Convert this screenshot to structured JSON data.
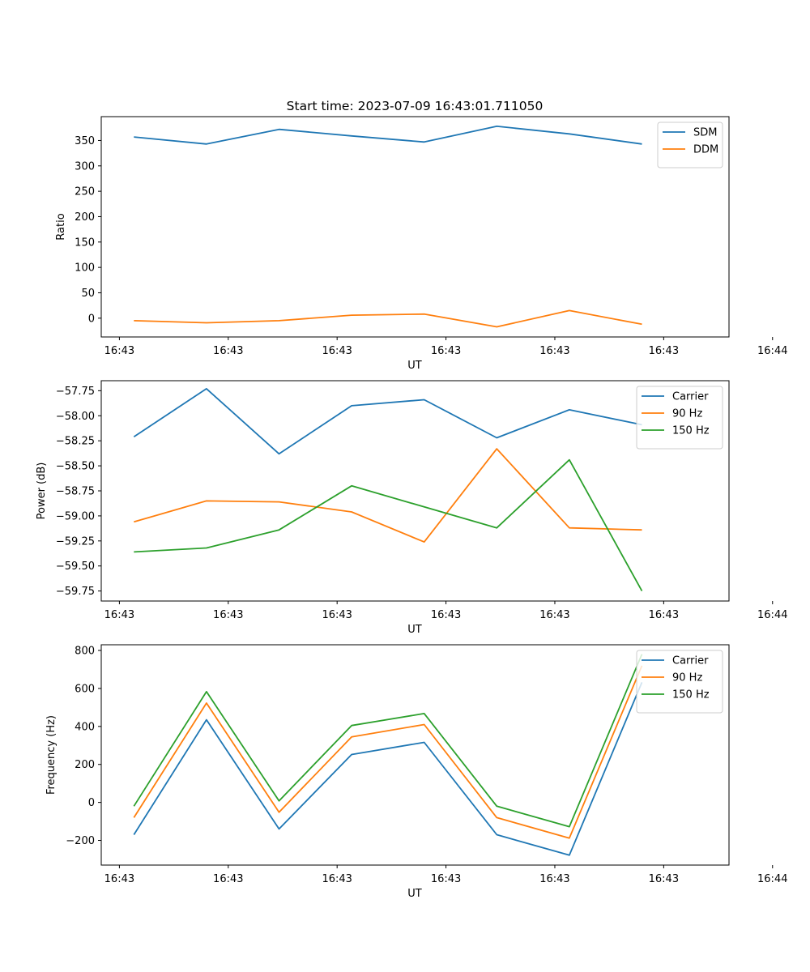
{
  "figure": {
    "title": "Start time: 2023-07-09 16:43:01.711050"
  },
  "chart_data": [
    {
      "type": "line",
      "title": "Start time: 2023-07-09 16:43:01.711050",
      "xlabel": "UT",
      "ylabel": "Ratio",
      "x": [
        1,
        2,
        3,
        4,
        5,
        6,
        7,
        8
      ],
      "xlim": [
        0.55,
        9.2
      ],
      "x_ticks": [
        0.8,
        2.3,
        3.8,
        5.3,
        6.8,
        8.3,
        9.8
      ],
      "x_tick_labels": [
        "16:43",
        "16:43",
        "16:43",
        "16:43",
        "16:43",
        "16:43",
        "16:44"
      ],
      "ylim": [
        -37,
        397
      ],
      "y_ticks": [
        0,
        50,
        100,
        150,
        200,
        250,
        300,
        350
      ],
      "y_tick_labels": [
        "0",
        "50",
        "100",
        "150",
        "200",
        "250",
        "300",
        "350"
      ],
      "legend_position": "top-right",
      "series": [
        {
          "name": "SDM",
          "color": "#1f77b4",
          "values": [
            357,
            343,
            372,
            359,
            347,
            378,
            363,
            343
          ]
        },
        {
          "name": "DDM",
          "color": "#ff7f0e",
          "values": [
            -5,
            -9,
            -5,
            6,
            8,
            -17,
            15,
            -12
          ]
        }
      ]
    },
    {
      "type": "line",
      "title": "",
      "xlabel": "UT",
      "ylabel": "Power (dB)",
      "x": [
        1,
        2,
        3,
        4,
        5,
        6,
        7,
        8
      ],
      "xlim": [
        0.55,
        9.2
      ],
      "x_ticks": [
        0.8,
        2.3,
        3.8,
        5.3,
        6.8,
        8.3,
        9.8
      ],
      "x_tick_labels": [
        "16:43",
        "16:43",
        "16:43",
        "16:43",
        "16:43",
        "16:43",
        "16:44"
      ],
      "ylim": [
        -59.85,
        -57.65
      ],
      "y_ticks": [
        -57.75,
        -58.0,
        -58.25,
        -58.5,
        -58.75,
        -59.0,
        -59.25,
        -59.5,
        -59.75
      ],
      "y_tick_labels": [
        "−57.75",
        "−58.00",
        "−58.25",
        "−58.50",
        "−58.75",
        "−59.00",
        "−59.25",
        "−59.50",
        "−59.75"
      ],
      "legend_position": "top-right",
      "series": [
        {
          "name": "Carrier",
          "color": "#1f77b4",
          "values": [
            -58.21,
            -57.73,
            -58.38,
            -57.9,
            -57.84,
            -58.22,
            -57.94,
            -58.09
          ]
        },
        {
          "name": "90 Hz",
          "color": "#ff7f0e",
          "values": [
            -59.06,
            -58.85,
            -58.86,
            -58.96,
            -59.26,
            -58.33,
            -59.12,
            -59.14
          ]
        },
        {
          "name": "150 Hz",
          "color": "#2ca02c",
          "values": [
            -59.36,
            -59.32,
            -59.14,
            -58.7,
            -58.91,
            -59.12,
            -58.44,
            -59.75
          ]
        }
      ]
    },
    {
      "type": "line",
      "title": "",
      "xlabel": "UT",
      "ylabel": "Frequency (Hz)",
      "x": [
        1,
        2,
        3,
        4,
        5,
        6,
        7,
        8
      ],
      "xlim": [
        0.55,
        9.2
      ],
      "x_ticks": [
        0.8,
        2.3,
        3.8,
        5.3,
        6.8,
        8.3,
        9.8
      ],
      "x_tick_labels": [
        "16:43",
        "16:43",
        "16:43",
        "16:43",
        "16:43",
        "16:43",
        "16:44"
      ],
      "ylim": [
        -330,
        830
      ],
      "y_ticks": [
        -200,
        0,
        200,
        400,
        600,
        800
      ],
      "y_tick_labels": [
        "−200",
        "0",
        "200",
        "400",
        "600",
        "800"
      ],
      "legend_position": "top-right",
      "series": [
        {
          "name": "Carrier",
          "color": "#1f77b4",
          "values": [
            -170,
            435,
            -140,
            252,
            316,
            -170,
            -278,
            632
          ]
        },
        {
          "name": "90 Hz",
          "color": "#ff7f0e",
          "values": [
            -80,
            523,
            -52,
            345,
            410,
            -80,
            -188,
            720
          ]
        },
        {
          "name": "150 Hz",
          "color": "#2ca02c",
          "values": [
            -20,
            583,
            8,
            405,
            468,
            -20,
            -128,
            780
          ]
        }
      ]
    }
  ]
}
